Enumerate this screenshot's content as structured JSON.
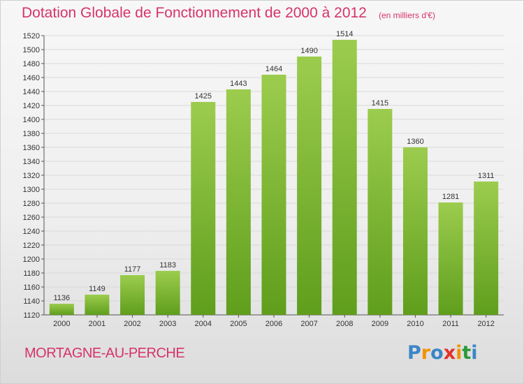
{
  "header": {
    "title": "Dotation Globale de Fonctionnement de 2000 à 2012",
    "subtitle": "(en milliers d'€)"
  },
  "footer": {
    "commune": "MORTAGNE-AU-PERCHE",
    "logo": {
      "letters": [
        "P",
        "r",
        "o",
        "x",
        "i",
        "t",
        "i"
      ],
      "colors": [
        "#3b86c6",
        "#f39200",
        "#3b86c6",
        "#e4312b",
        "#f39200",
        "#2a9a3a",
        "#3b86c6"
      ]
    }
  },
  "colors": {
    "title": "#d6336c",
    "bar_light": "#9ccc4e",
    "bar_dark": "#5f9e1c",
    "grid": "#d9d9d9"
  },
  "chart_data": {
    "type": "bar",
    "title": "Dotation Globale de Fonctionnement de 2000 à 2012",
    "subtitle": "(en milliers d'€)",
    "xlabel": "",
    "ylabel": "",
    "categories": [
      "2000",
      "2001",
      "2002",
      "2003",
      "2004",
      "2005",
      "2006",
      "2007",
      "2008",
      "2009",
      "2010",
      "2011",
      "2012"
    ],
    "values": [
      1136,
      1149,
      1177,
      1183,
      1425,
      1443,
      1464,
      1490,
      1514,
      1415,
      1360,
      1281,
      1311
    ],
    "ylim": [
      1120,
      1520
    ],
    "yticks": [
      1120,
      1140,
      1160,
      1180,
      1200,
      1220,
      1240,
      1260,
      1280,
      1300,
      1320,
      1340,
      1360,
      1380,
      1400,
      1420,
      1440,
      1460,
      1480,
      1500,
      1520
    ],
    "grid": true,
    "data_labels": true
  }
}
